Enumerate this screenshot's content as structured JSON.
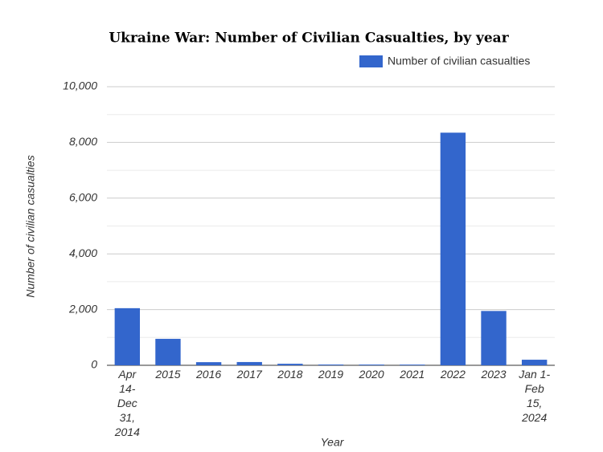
{
  "chart_data": {
    "type": "bar",
    "title": "Ukraine War: Number of Civilian Casualties, by year",
    "x_label": "Year",
    "y_label": "Number of civilian casualties",
    "categories": [
      "Apr 14-Dec 31, 2014",
      "2015",
      "2016",
      "2017",
      "2018",
      "2019",
      "2020",
      "2021",
      "2022",
      "2023",
      "Jan 1-Feb 15, 2024"
    ],
    "series": [
      {
        "name": "Number of civilian casualties",
        "color": "#3366cc",
        "values": [
          2050,
          950,
          112,
          117,
          55,
          27,
          26,
          25,
          8350,
          1950,
          200
        ]
      }
    ],
    "ylim": [
      0,
      10000
    ],
    "yticks": [
      0,
      {
        "value": 2000,
        "label": "2,000"
      },
      {
        "value": 4000,
        "label": "4,000"
      },
      {
        "value": 6000,
        "label": "6,000"
      },
      {
        "value": 8000,
        "label": "8,000"
      },
      {
        "value": 10000,
        "label": "10,000"
      }
    ],
    "minor_yticks": [
      1000,
      3000,
      5000,
      7000,
      9000
    ],
    "grid": true,
    "legend": "top-right"
  }
}
